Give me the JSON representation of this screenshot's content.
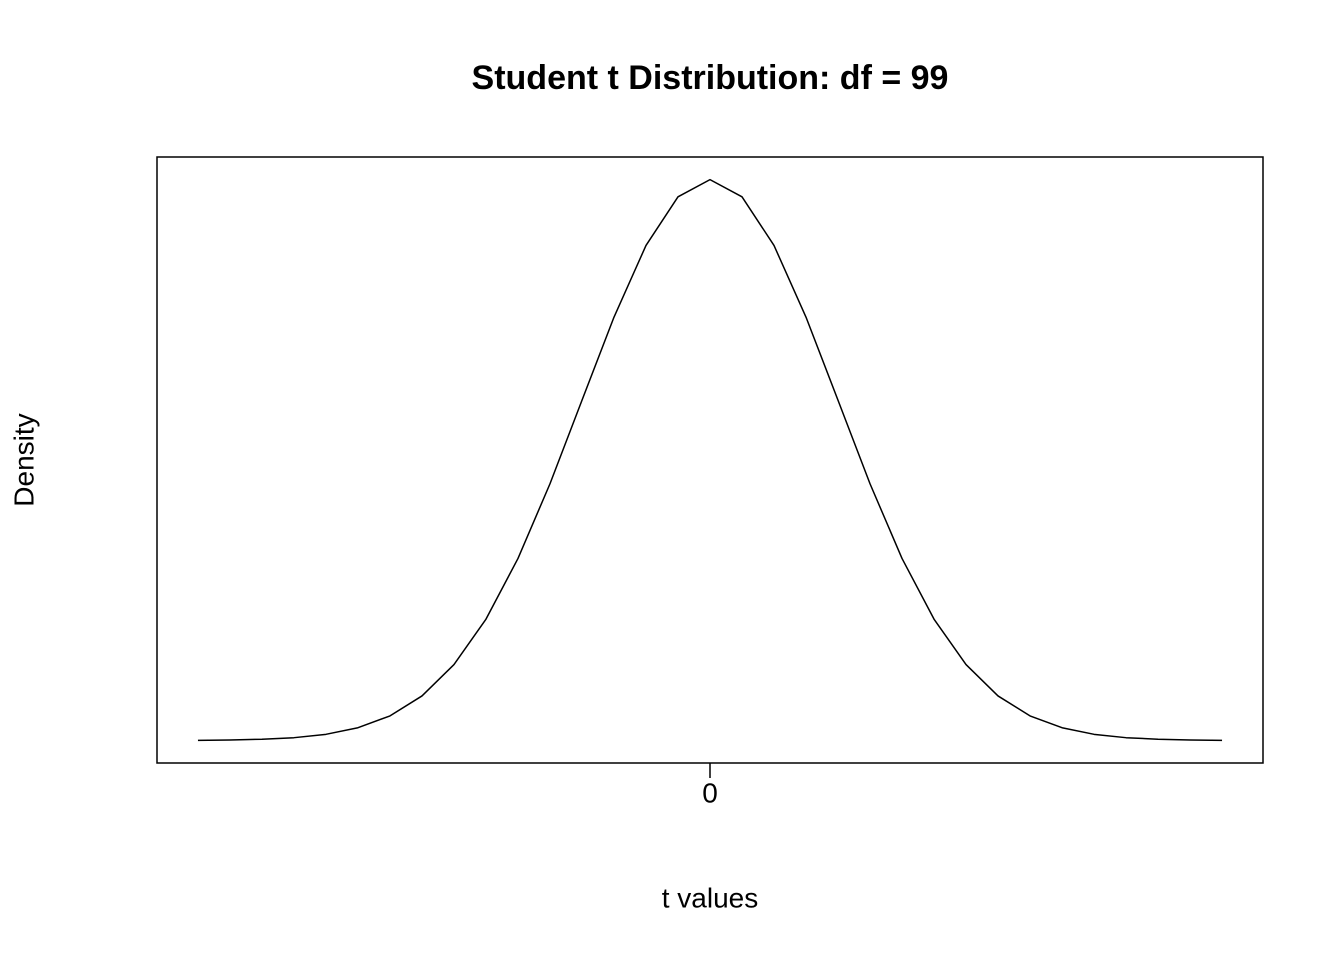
{
  "chart_data": {
    "type": "line",
    "title": "Student t Distribution: df = 99",
    "xlabel": "t values",
    "ylabel": "Density",
    "x": [
      -4,
      -3.75,
      -3.5,
      -3.25,
      -3,
      -2.75,
      -2.5,
      -2.25,
      -2,
      -1.75,
      -1.5,
      -1.25,
      -1,
      -0.75,
      -0.5,
      -0.25,
      0,
      0.25,
      0.5,
      0.75,
      1,
      1.25,
      1.5,
      1.75,
      2,
      2.25,
      2.5,
      2.75,
      3,
      3.25,
      3.5,
      3.75,
      4
    ],
    "values": [
      0.0001,
      0.0004,
      0.0009,
      0.002,
      0.0044,
      0.0091,
      0.0175,
      0.0317,
      0.054,
      0.0863,
      0.1295,
      0.1826,
      0.242,
      0.3011,
      0.3521,
      0.3867,
      0.3989,
      0.3867,
      0.3521,
      0.3011,
      0.242,
      0.1826,
      0.1295,
      0.0863,
      0.054,
      0.0317,
      0.0175,
      0.0091,
      0.0044,
      0.002,
      0.0009,
      0.0004,
      0.0001
    ],
    "color": "#000000",
    "xlim": [
      -4.32,
      4.32
    ],
    "ylim": [
      -0.016,
      0.415
    ],
    "xticks": [
      0
    ]
  }
}
